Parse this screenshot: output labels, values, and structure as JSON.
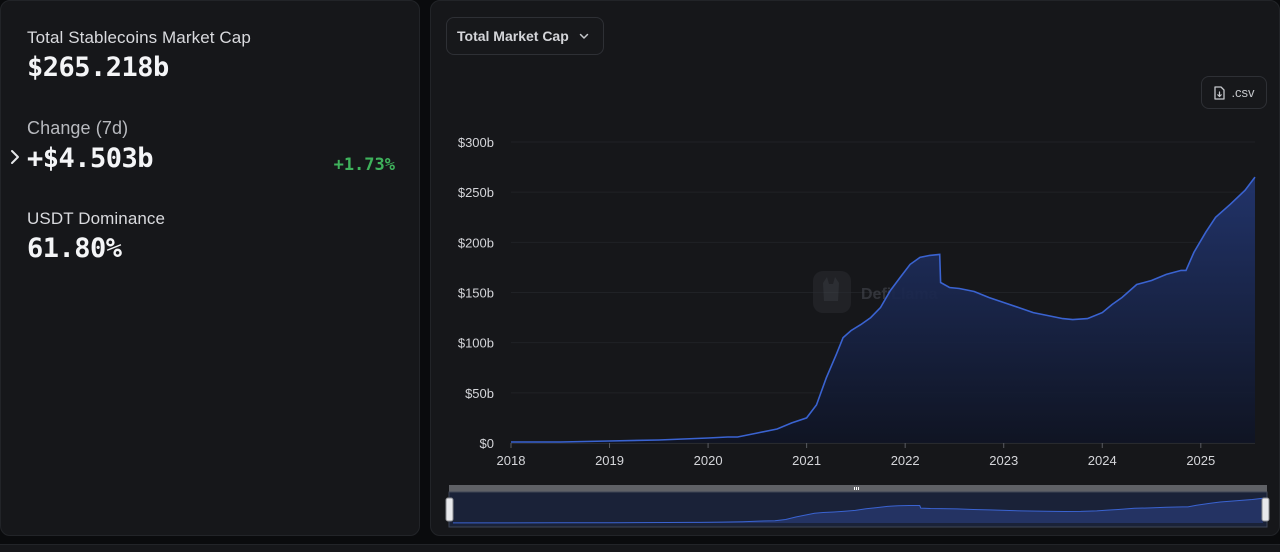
{
  "stats": {
    "market_cap": {
      "label": "Total Stablecoins Market Cap",
      "value": "$265.218b"
    },
    "change": {
      "label": "Change (7d)",
      "value": "+$4.503b",
      "percent": "+1.73%"
    },
    "dominance": {
      "label": "USDT Dominance",
      "value": "61.80%"
    }
  },
  "controls": {
    "metric_dropdown": "Total Market Cap",
    "csv_button": ".csv"
  },
  "watermark": "DefiLlama",
  "colors": {
    "line": "#3a63d1",
    "positive": "#3fb25c",
    "area_top": "#22356e"
  },
  "chart_data": {
    "type": "area",
    "title": "",
    "xlabel": "",
    "ylabel": "",
    "x_tick_labels": [
      "2018",
      "2019",
      "2020",
      "2021",
      "2022",
      "2023",
      "2024",
      "2025"
    ],
    "y_tick_labels": [
      "$0",
      "$50b",
      "$100b",
      "$150b",
      "$200b",
      "$250b",
      "$300b"
    ],
    "xlim": [
      2018.0,
      2025.55
    ],
    "ylim": [
      0,
      300
    ],
    "grid": true,
    "series": [
      {
        "x": [
          2018.0,
          2018.5,
          2019.0,
          2019.5,
          2020.0,
          2020.2,
          2020.3,
          2020.5,
          2020.7,
          2020.85,
          2021.0,
          2021.1,
          2021.2,
          2021.3,
          2021.37,
          2021.45,
          2021.55,
          2021.65,
          2021.75,
          2021.85,
          2021.95,
          2022.05,
          2022.15,
          2022.25,
          2022.35,
          2022.36,
          2022.45,
          2022.55,
          2022.7,
          2022.85,
          2023.0,
          2023.15,
          2023.3,
          2023.45,
          2023.6,
          2023.7,
          2023.85,
          2024.0,
          2024.1,
          2024.2,
          2024.35,
          2024.5,
          2024.65,
          2024.8,
          2024.85,
          2024.93,
          2025.05,
          2025.15,
          2025.3,
          2025.45,
          2025.55
        ],
        "values": [
          1,
          1,
          2,
          3,
          5,
          6,
          6,
          10,
          14,
          20,
          25,
          38,
          65,
          88,
          105,
          112,
          118,
          125,
          135,
          152,
          165,
          178,
          185,
          187,
          188,
          160,
          155,
          154,
          151,
          145,
          140,
          135,
          130,
          127,
          124,
          123,
          124,
          130,
          138,
          145,
          158,
          162,
          168,
          172,
          172,
          190,
          210,
          225,
          238,
          252,
          265
        ]
      }
    ]
  }
}
